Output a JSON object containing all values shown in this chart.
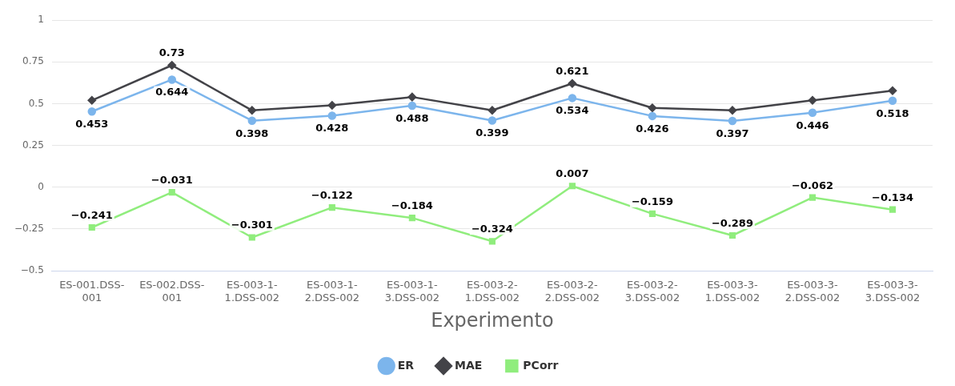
{
  "chart_data": {
    "type": "line",
    "xlabel": "Experimento",
    "categories": [
      "ES-001.DSS-001",
      "ES-002.DSS-001",
      "ES-003-1-1.DSS-002",
      "ES-003-1-2.DSS-002",
      "ES-003-1-3.DSS-002",
      "ES-003-2-1.DSS-002",
      "ES-003-2-2.DSS-002",
      "ES-003-2-3.DSS-002",
      "ES-003-3-1.DSS-002",
      "ES-003-3-2.DSS-002",
      "ES-003-3-3.DSS-002"
    ],
    "series": [
      {
        "name": "ER",
        "color": "#7cb5ec",
        "marker": "circle",
        "values": [
          0.453,
          0.644,
          0.398,
          0.428,
          0.488,
          0.399,
          0.534,
          0.426,
          0.397,
          0.446,
          0.518
        ],
        "value_labels": [
          "0.453",
          "0.644",
          "0.398",
          "0.428",
          "0.488",
          "0.399",
          "0.534",
          "0.426",
          "0.397",
          "0.446",
          "0.518"
        ]
      },
      {
        "name": "MAE",
        "color": "#434348",
        "marker": "diamond",
        "values": [
          0.52,
          0.73,
          0.46,
          0.49,
          0.54,
          0.46,
          0.621,
          0.475,
          0.46,
          0.52,
          0.578
        ],
        "value_labels": [
          null,
          "0.73",
          null,
          null,
          null,
          null,
          "0.621",
          null,
          null,
          null,
          null
        ]
      },
      {
        "name": "PCorr",
        "color": "#90ed7d",
        "marker": "square",
        "values": [
          -0.241,
          -0.031,
          -0.301,
          -0.122,
          -0.184,
          -0.324,
          0.007,
          -0.159,
          -0.289,
          -0.062,
          -0.134
        ],
        "value_labels": [
          "−0.241",
          "−0.031",
          "−0.301",
          "−0.122",
          "−0.184",
          "−0.324",
          "0.007",
          "−0.159",
          "−0.289",
          "−0.062",
          "−0.134"
        ]
      }
    ],
    "ylim": [
      -0.5,
      1
    ],
    "yticks": [
      {
        "value": -0.5,
        "label": "−0.5"
      },
      {
        "value": -0.25,
        "label": "−0.25"
      },
      0,
      0.25,
      0.5,
      0.75,
      1
    ],
    "grid": "y",
    "legend": "bottom",
    "line_style": "solid"
  }
}
